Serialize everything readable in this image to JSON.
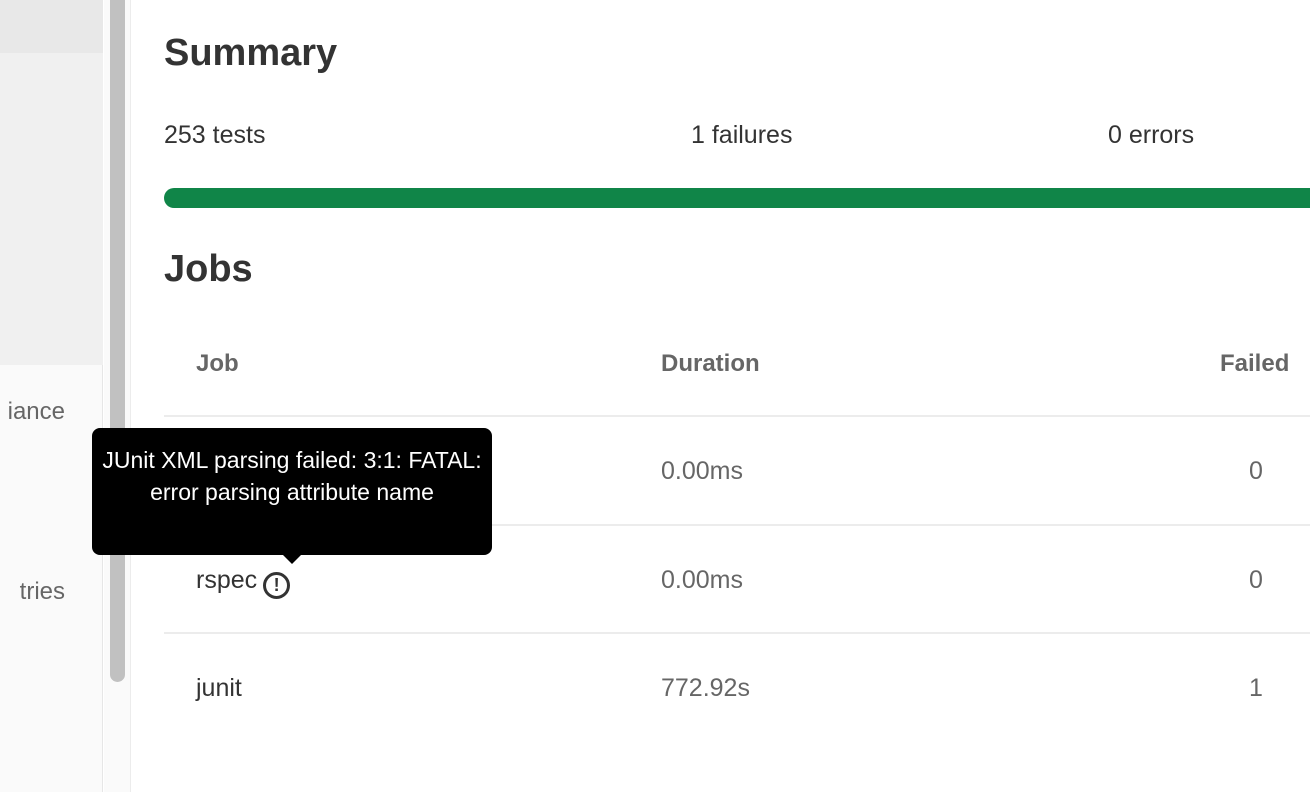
{
  "sidebar": {
    "items": [
      {
        "label": "iance"
      },
      {
        "label": "tries"
      }
    ]
  },
  "summary": {
    "title": "Summary",
    "tests": "253 tests",
    "failures": "1 failures",
    "errors": "0 errors",
    "success_percent": 99.6,
    "bar_color": "#108548"
  },
  "jobs": {
    "title": "Jobs",
    "columns": [
      "Job",
      "Duration",
      "Failed"
    ],
    "rows": [
      {
        "name": "",
        "duration": "0.00ms",
        "failed": "0"
      },
      {
        "name": "rspec",
        "duration": "0.00ms",
        "failed": "0",
        "icon": "warning-circle-icon"
      },
      {
        "name": "junit",
        "duration": "772.92s",
        "failed": "1"
      }
    ]
  },
  "tooltip": {
    "text": "JUnit XML parsing failed: 3:1: FATAL: error parsing attribute name"
  }
}
